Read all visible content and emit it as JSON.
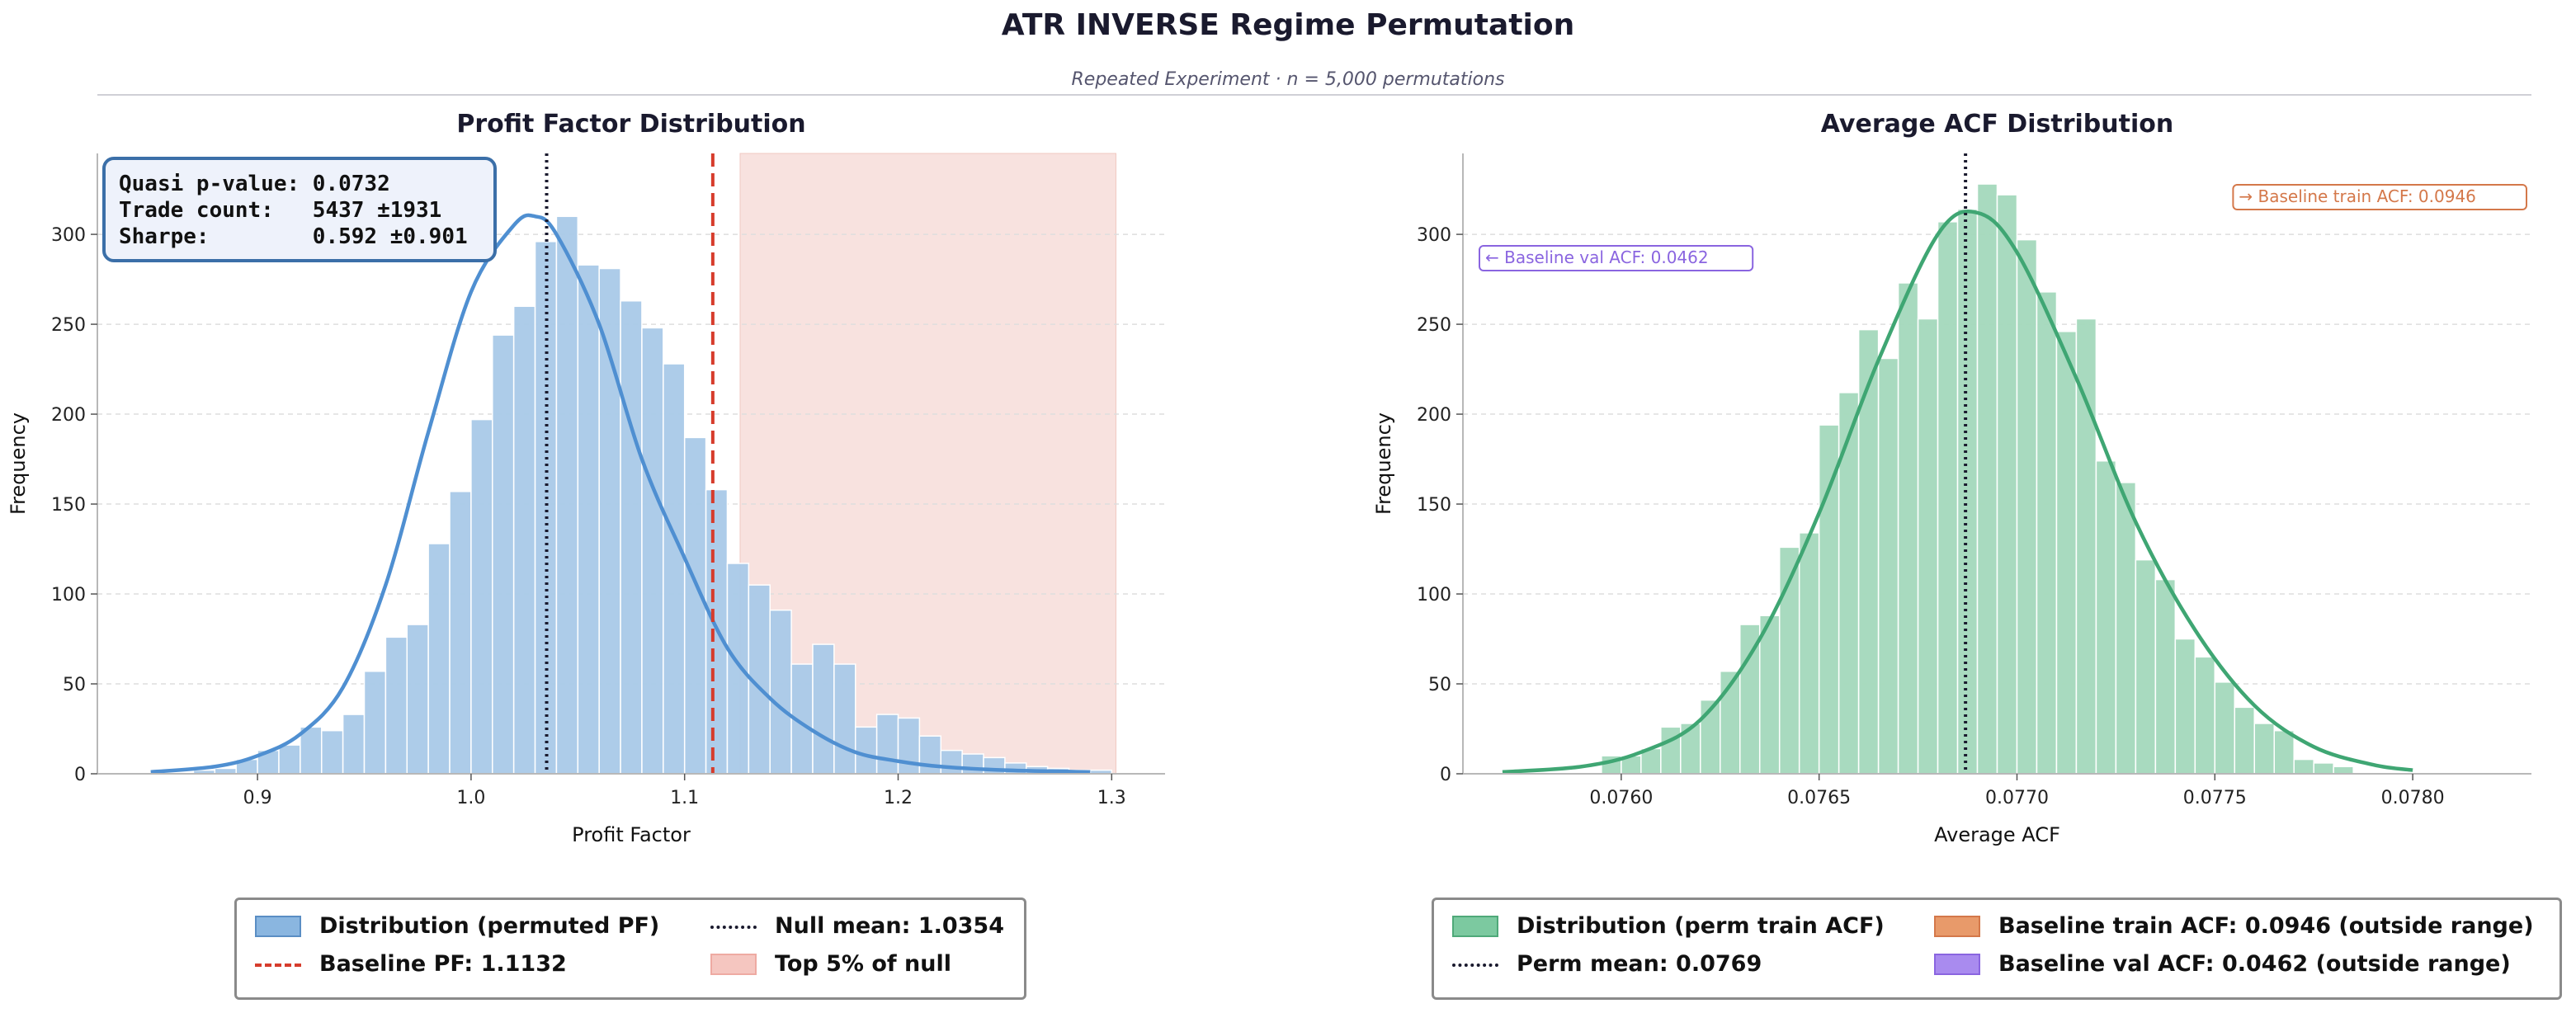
{
  "figure": {
    "title": "ATR INVERSE Regime Permutation",
    "subtitle": "Repeated Experiment  ·  n = 5,000 permutations"
  },
  "left_panel": {
    "stats_box": [
      "Quasi p-value: 0.0732",
      "Trade count:   5437 ±1931",
      "Sharpe:        0.592 ±0.901"
    ],
    "legend": {
      "items": [
        {
          "label": "Distribution (permuted PF)",
          "kind": "patch",
          "color": "#8ab6e0",
          "edge": "#5a8ec4"
        },
        {
          "label": "Null mean: 1.0354",
          "kind": "dotted",
          "color": "#1a1a2e"
        },
        {
          "label": "Baseline PF: 1.1132",
          "kind": "dashed",
          "color": "#d63c2c"
        },
        {
          "label": "Top 5% of null",
          "kind": "patch",
          "color": "#f5c6c0",
          "edge": "#eeaaa2"
        }
      ]
    }
  },
  "right_panel": {
    "legend": {
      "items": [
        {
          "label": "Distribution (perm train ACF)",
          "kind": "patch",
          "color": "#7cc9a0",
          "edge": "#4fa979"
        },
        {
          "label": "Baseline train ACF: 0.0946 (outside range)",
          "kind": "patch",
          "color": "#e89a6a",
          "edge": "#d4784a"
        },
        {
          "label": "Perm mean: 0.0769",
          "kind": "dotted",
          "color": "#1a1a2e"
        },
        {
          "label": "Baseline val ACF: 0.0462 (outside range)",
          "kind": "patch",
          "color": "#a98bef",
          "edge": "#8a65e0"
        }
      ]
    }
  },
  "chart_data": [
    {
      "type": "bar",
      "title": "Profit Factor Distribution",
      "xlabel": "Profit Factor",
      "ylabel": "Frequency",
      "xlim": [
        0.825,
        1.325
      ],
      "ylim": [
        0,
        345
      ],
      "xticks": [
        0.9,
        1.0,
        1.1,
        1.2,
        1.3
      ],
      "xtick_labels": [
        "0.9",
        "1.0",
        "1.1",
        "1.2",
        "1.3"
      ],
      "yticks": [
        0,
        50,
        100,
        150,
        200,
        250,
        300
      ],
      "grid": "y",
      "legend_position": "below",
      "bin_width": 0.01,
      "bin_starts": [
        0.87,
        0.88,
        0.89,
        0.9,
        0.91,
        0.92,
        0.93,
        0.94,
        0.95,
        0.96,
        0.97,
        0.98,
        0.99,
        1.0,
        1.01,
        1.02,
        1.03,
        1.04,
        1.05,
        1.06,
        1.07,
        1.08,
        1.09,
        1.1,
        1.11,
        1.12,
        1.13,
        1.14,
        1.15,
        1.16,
        1.17,
        1.18,
        1.19,
        1.2,
        1.21,
        1.22,
        1.23,
        1.24,
        1.25,
        1.26,
        1.27,
        1.28,
        1.29
      ],
      "series": [
        {
          "name": "Distribution (permuted PF)",
          "color": "#a9c9e8",
          "values": [
            2,
            3,
            8,
            13,
            16,
            26,
            24,
            33,
            57,
            76,
            83,
            128,
            157,
            197,
            244,
            260,
            296,
            310,
            283,
            281,
            263,
            248,
            228,
            187,
            158,
            117,
            105,
            91,
            61,
            72,
            61,
            26,
            33,
            31,
            21,
            13,
            11,
            9,
            6,
            4,
            3,
            2,
            2
          ]
        }
      ],
      "kde": {
        "color": "#4f8fd1",
        "x": [
          0.85,
          0.88,
          0.9,
          0.92,
          0.94,
          0.96,
          0.98,
          1.0,
          1.02,
          1.03,
          1.04,
          1.06,
          1.08,
          1.1,
          1.12,
          1.14,
          1.16,
          1.18,
          1.2,
          1.22,
          1.25,
          1.29
        ],
        "y": [
          1,
          4,
          10,
          22,
          48,
          105,
          190,
          268,
          305,
          310,
          300,
          250,
          175,
          120,
          70,
          42,
          24,
          12,
          7,
          4,
          2,
          1
        ]
      },
      "vlines": [
        {
          "x": 1.0354,
          "style": "dotted",
          "color": "#1a1a2e",
          "label": "Null mean: 1.0354"
        },
        {
          "x": 1.1132,
          "style": "dashed",
          "color": "#d63c2c",
          "label": "Baseline PF: 1.1132"
        }
      ],
      "shaded_region": {
        "x0": 1.126,
        "x1": 1.302,
        "color": "#f8e2df",
        "label": "Top 5% of null"
      }
    },
    {
      "type": "bar",
      "title": "Average ACF Distribution",
      "xlabel": "Average ACF",
      "ylabel": "Frequency",
      "xlim": [
        0.0756,
        0.0783
      ],
      "ylim": [
        0,
        345
      ],
      "xticks": [
        0.076,
        0.0765,
        0.077,
        0.0775,
        0.078
      ],
      "xtick_labels": [
        "0.0760",
        "0.0765",
        "0.0770",
        "0.0775",
        "0.0780"
      ],
      "yticks": [
        0,
        50,
        100,
        150,
        200,
        250,
        300
      ],
      "grid": "y",
      "legend_position": "below",
      "bin_width": 5e-05,
      "bin_starts": [
        0.07595,
        0.076,
        0.07605,
        0.0761,
        0.07615,
        0.0762,
        0.07625,
        0.0763,
        0.07635,
        0.0764,
        0.07645,
        0.0765,
        0.07655,
        0.0766,
        0.07665,
        0.0767,
        0.07675,
        0.0768,
        0.07685,
        0.0769,
        0.07695,
        0.077,
        0.07705,
        0.0771,
        0.07715,
        0.0772,
        0.07725,
        0.0773,
        0.07735,
        0.0774,
        0.07745,
        0.0775,
        0.07755,
        0.0776,
        0.07765,
        0.0777,
        0.07775,
        0.0778
      ],
      "series": [
        {
          "name": "Distribution (perm train ACF)",
          "color": "#a3d8bc",
          "values": [
            10,
            10,
            14,
            26,
            28,
            41,
            57,
            83,
            88,
            126,
            134,
            194,
            212,
            247,
            231,
            273,
            253,
            307,
            314,
            328,
            322,
            297,
            268,
            246,
            253,
            174,
            162,
            119,
            108,
            75,
            65,
            51,
            37,
            28,
            24,
            8,
            6,
            4
          ]
        }
      ],
      "kde": {
        "color": "#3fa673",
        "x": [
          0.0757,
          0.0759,
          0.07605,
          0.0762,
          0.07635,
          0.0765,
          0.07665,
          0.0768,
          0.0769,
          0.077,
          0.07715,
          0.0773,
          0.07745,
          0.0776,
          0.07775,
          0.0779,
          0.078
        ],
        "y": [
          1,
          4,
          12,
          30,
          75,
          145,
          230,
          300,
          312,
          290,
          220,
          140,
          80,
          38,
          15,
          5,
          2
        ]
      },
      "vlines": [
        {
          "x": 0.07687,
          "style": "dotted",
          "color": "#1a1a2e",
          "label": "Perm mean: 0.0769"
        }
      ],
      "annotations": [
        {
          "text": "→ Baseline train ACF: 0.0946",
          "position": "top-right",
          "color": "#d4784a"
        },
        {
          "text": "← Baseline val ACF: 0.0462",
          "position": "top-left",
          "color": "#8a65e0"
        }
      ]
    }
  ]
}
